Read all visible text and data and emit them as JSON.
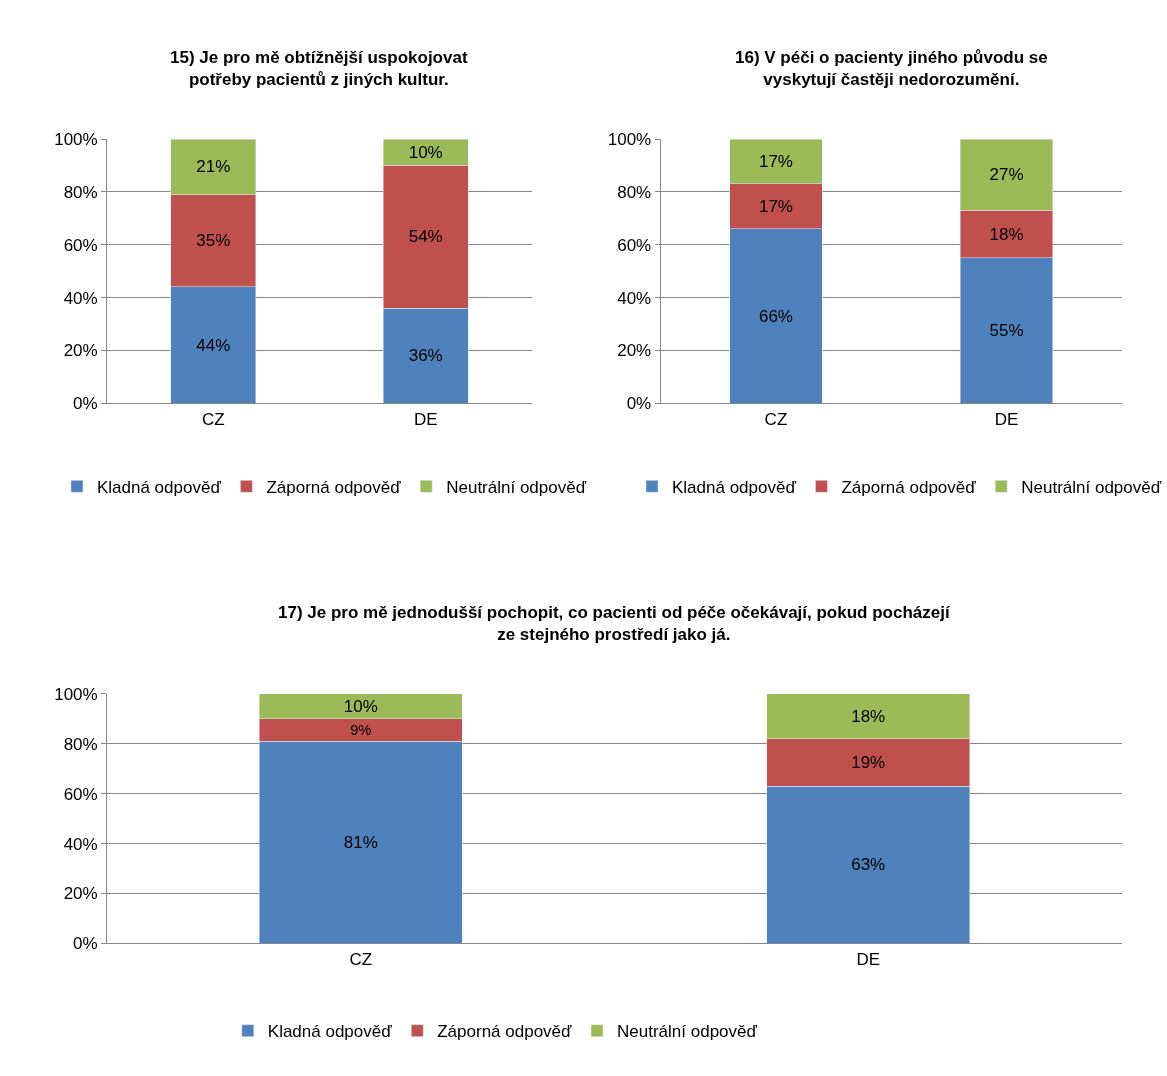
{
  "chart_data": [
    {
      "type": "bar",
      "stacked": true,
      "title": "15) Je pro mě obtížnější uspokojovat potřeby pacientů z jiných kultur.",
      "categories": [
        "CZ",
        "DE"
      ],
      "ylim": [
        0,
        100
      ],
      "yticks": [
        {
          "value": 0,
          "label": "0%"
        },
        {
          "value": 20,
          "label": "20%"
        },
        {
          "value": 40,
          "label": "40%"
        },
        {
          "value": 60,
          "label": "60%"
        },
        {
          "value": 80,
          "label": "80%"
        },
        {
          "value": 100,
          "label": "100%"
        }
      ],
      "grid": "y",
      "legend": "bottom",
      "series": [
        {
          "name": "Kladná odpověď",
          "color": "#4f81bd",
          "values": [
            44,
            36
          ],
          "value_labels": [
            "44%",
            "36%"
          ]
        },
        {
          "name": "Záporná odpověď",
          "color": "#c0504d",
          "values": [
            35,
            54
          ],
          "value_labels": [
            "35%",
            "54%"
          ]
        },
        {
          "name": "Neutrální odpověď",
          "color": "#9bbb59",
          "values": [
            21,
            10
          ],
          "value_labels": [
            "21%",
            "10%"
          ]
        }
      ]
    },
    {
      "type": "bar",
      "stacked": true,
      "title": "16) V péči o pacienty jiného původu se vyskytují častěji nedorozumění.",
      "categories": [
        "CZ",
        "DE"
      ],
      "ylim": [
        0,
        100
      ],
      "yticks": [
        {
          "value": 0,
          "label": "0%"
        },
        {
          "value": 20,
          "label": "20%"
        },
        {
          "value": 40,
          "label": "40%"
        },
        {
          "value": 60,
          "label": "60%"
        },
        {
          "value": 80,
          "label": "80%"
        },
        {
          "value": 100,
          "label": "100%"
        }
      ],
      "grid": "y",
      "legend": "bottom",
      "series": [
        {
          "name": "Kladná odpověď",
          "color": "#4f81bd",
          "values": [
            66,
            55
          ],
          "value_labels": [
            "66%",
            "55%"
          ]
        },
        {
          "name": "Záporná odpověď",
          "color": "#c0504d",
          "values": [
            17,
            18
          ],
          "value_labels": [
            "17%",
            "18%"
          ]
        },
        {
          "name": "Neutrální odpověď",
          "color": "#9bbb59",
          "values": [
            17,
            27
          ],
          "value_labels": [
            "17%",
            "27%"
          ]
        }
      ]
    },
    {
      "type": "bar",
      "stacked": true,
      "title": "17) Je pro mě jednodušší pochopit, co pacienti od péče očekávají, pokud pocházejí ze stejného prostředí jako já.",
      "categories": [
        "CZ",
        "DE"
      ],
      "ylim": [
        0,
        100
      ],
      "yticks": [
        {
          "value": 0,
          "label": "0%"
        },
        {
          "value": 20,
          "label": "20%"
        },
        {
          "value": 40,
          "label": "40%"
        },
        {
          "value": 60,
          "label": "60%"
        },
        {
          "value": 80,
          "label": "80%"
        },
        {
          "value": 100,
          "label": "100%"
        }
      ],
      "grid": "y",
      "legend": "bottom",
      "series": [
        {
          "name": "Kladná odpověď",
          "color": "#4f81bd",
          "values": [
            81,
            63
          ],
          "value_labels": [
            "81%",
            "63%"
          ]
        },
        {
          "name": "Záporná odpověď",
          "color": "#c0504d",
          "values": [
            9,
            19
          ],
          "value_labels": [
            "9%",
            "19%"
          ]
        },
        {
          "name": "Neutrální odpověď",
          "color": "#9bbb59",
          "values": [
            10,
            18
          ],
          "value_labels": [
            "10%",
            "18%"
          ]
        }
      ]
    }
  ]
}
